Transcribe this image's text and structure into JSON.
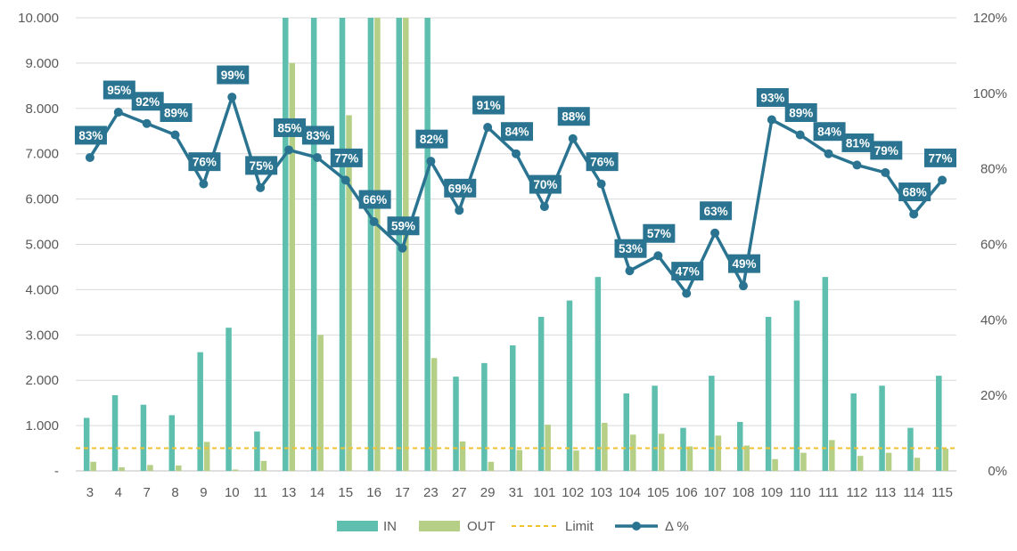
{
  "chart_data": {
    "type": "bar",
    "title": "",
    "xlabel": "",
    "ylabel": "",
    "categories": [
      "3",
      "4",
      "7",
      "8",
      "9",
      "10",
      "11",
      "13",
      "14",
      "15",
      "16",
      "17",
      "23",
      "27",
      "29",
      "31",
      "101",
      "102",
      "103",
      "104",
      "105",
      "106",
      "107",
      "108",
      "109",
      "110",
      "111",
      "112",
      "113",
      "114",
      "115"
    ],
    "ylim": [
      0,
      10000
    ],
    "y_ticks": [
      "-",
      "1.000",
      "2.000",
      "3.000",
      "4.000",
      "5.000",
      "6.000",
      "7.000",
      "8.000",
      "9.000",
      "10.000"
    ],
    "y2lim": [
      0,
      120
    ],
    "y2_ticks": [
      "0%",
      "20%",
      "40%",
      "60%",
      "80%",
      "100%",
      "120%"
    ],
    "grid": true,
    "legend_position": "bottom",
    "series": [
      {
        "name": "IN",
        "kind": "bar",
        "color": "#5fbfae",
        "values": [
          1170,
          1670,
          1460,
          1230,
          2620,
          3160,
          870,
          10000,
          10000,
          10000,
          10000,
          10000,
          10000,
          2080,
          2380,
          2770,
          3400,
          3760,
          4280,
          1710,
          1880,
          950,
          2100,
          1080,
          3400,
          3760,
          4280,
          1710,
          1880,
          950,
          2100
        ]
      },
      {
        "name": "OUT",
        "kind": "bar",
        "color": "#b5cf86",
        "values": [
          200,
          80,
          130,
          120,
          640,
          30,
          220,
          9000,
          3000,
          7850,
          10000,
          10000,
          2490,
          650,
          200,
          460,
          1020,
          450,
          1060,
          800,
          820,
          540,
          780,
          560,
          260,
          400,
          680,
          330,
          400,
          290,
          490
        ]
      },
      {
        "name": "Limit",
        "kind": "line-dashed",
        "color": "#f2c12e",
        "values": [
          500,
          500,
          500,
          500,
          500,
          500,
          500,
          500,
          500,
          500,
          500,
          500,
          500,
          500,
          500,
          500,
          500,
          500,
          500,
          500,
          500,
          500,
          500,
          500,
          500,
          500,
          500,
          500,
          500,
          500,
          500
        ]
      },
      {
        "name": "Δ %",
        "kind": "line-markers",
        "axis": "secondary",
        "color": "#2a7491",
        "values": [
          83,
          95,
          92,
          89,
          76,
          99,
          75,
          85,
          83,
          77,
          66,
          59,
          82,
          69,
          91,
          84,
          70,
          88,
          76,
          53,
          57,
          47,
          63,
          49,
          93,
          89,
          84,
          81,
          79,
          68,
          77
        ],
        "labels": [
          "83%",
          "95%",
          "92%",
          "89%",
          "76%",
          "99%",
          "75%",
          "85%",
          "83%",
          "77%",
          "66%",
          "59%",
          "82%",
          "69%",
          "91%",
          "84%",
          "70%",
          "88%",
          "76%",
          "53%",
          "57%",
          "47%",
          "63%",
          "49%",
          "93%",
          "89%",
          "84%",
          "81%",
          "79%",
          "68%",
          "77%"
        ]
      }
    ]
  }
}
